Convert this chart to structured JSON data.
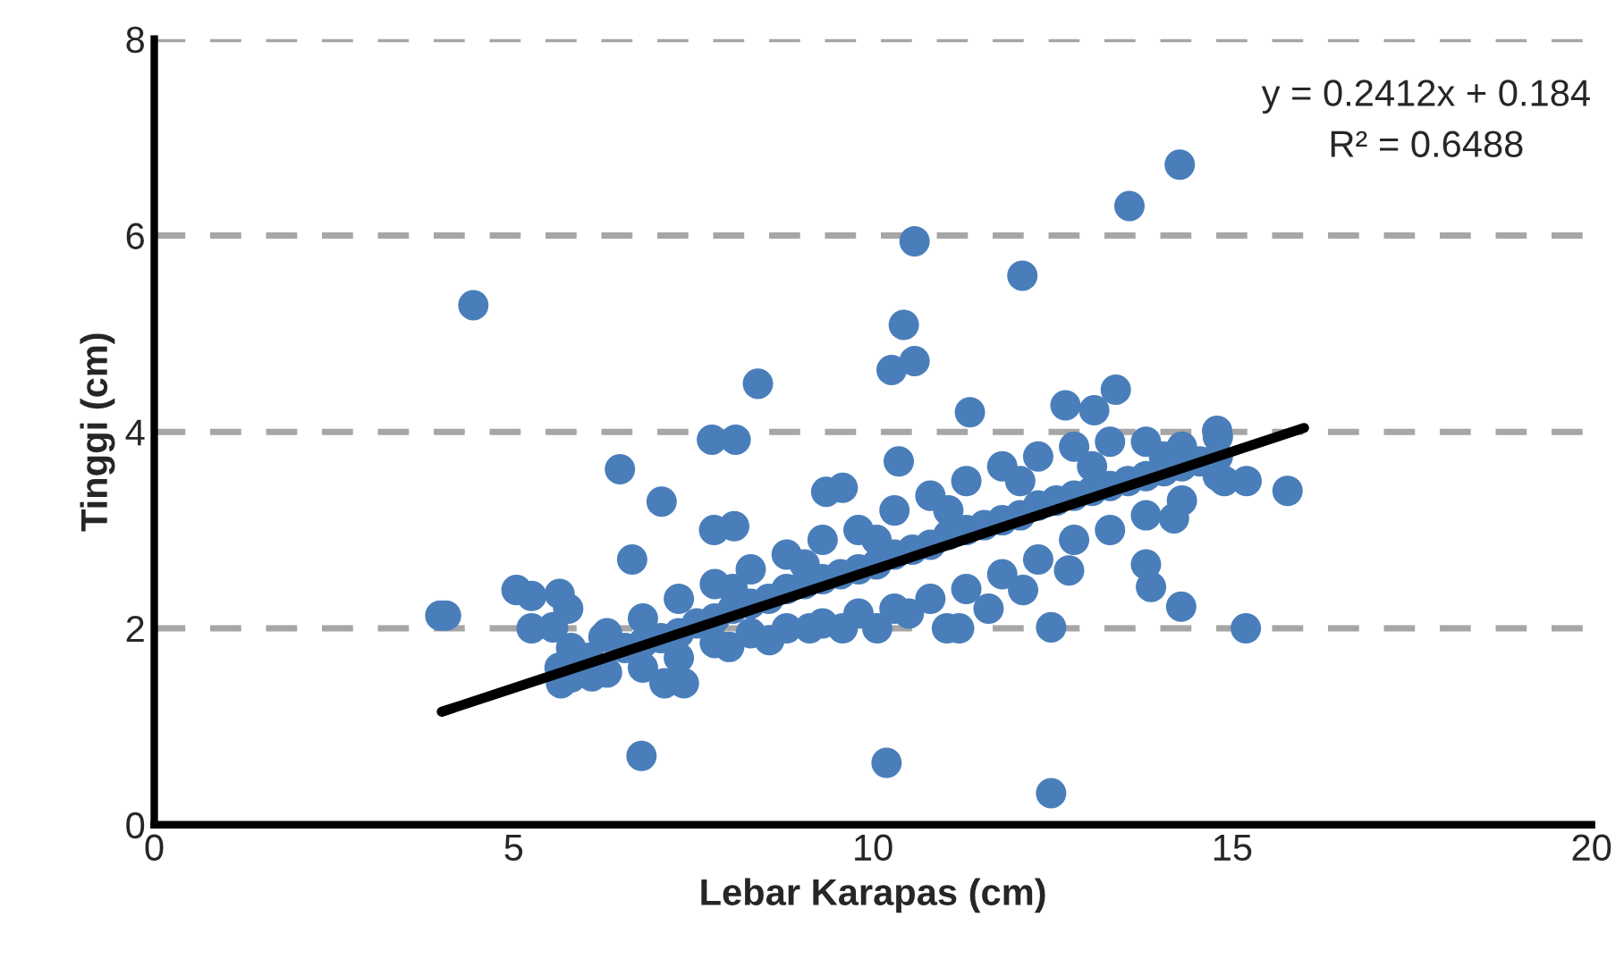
{
  "chart_data": {
    "type": "scatter",
    "xlabel": "Lebar Karapas (cm)",
    "ylabel": "Tinggi (cm)",
    "xlim": [
      0,
      20
    ],
    "ylim": [
      0,
      8
    ],
    "xticks": [
      0,
      5,
      10,
      15,
      20
    ],
    "yticks": [
      0,
      2,
      4,
      6,
      8
    ],
    "grid": "y",
    "annotations": [
      "y = 0.2412x + 0.184",
      "R² = 0.6488"
    ],
    "series": [
      {
        "marker": "circle",
        "color": "#4a7ebb",
        "x": [
          4.44,
          10.58,
          12.08,
          10.43,
          10.26,
          10.58,
          8.4,
          7.76,
          8.09,
          6.48,
          7.06,
          7.79,
          8.07,
          6.65,
          11.35,
          13.38,
          12.68,
          13.08,
          10.36,
          9.35,
          9.58,
          3.98,
          4.06,
          5.04,
          5.25,
          5.64,
          5.76,
          5.25,
          5.55,
          6.25,
          5.64,
          5.66,
          6.09,
          7.1,
          7.37,
          6.78,
          10.19,
          12.48,
          12.48,
          15.19,
          14.29,
          13.87,
          13.8,
          14.89,
          15.2,
          14.79,
          12.09,
          11.61,
          11.03,
          11.2,
          10.5,
          10.06,
          9.58,
          9.12,
          8.56,
          8.0,
          12.73,
          14.19,
          13.57,
          14.27,
          15.77,
          5.8,
          5.8,
          6.3,
          6.3,
          6.8,
          6.8,
          6.8,
          7.3,
          7.3,
          7.3,
          7.8,
          7.8,
          7.8,
          8.3,
          8.3,
          8.3,
          8.8,
          8.8,
          8.8,
          9.3,
          9.3,
          9.3,
          9.8,
          9.8,
          9.8,
          10.3,
          10.3,
          10.3,
          10.8,
          10.8,
          10.8,
          11.3,
          11.3,
          11.3,
          11.8,
          11.8,
          11.8,
          12.3,
          12.3,
          12.3,
          12.8,
          12.8,
          12.8,
          13.3,
          13.3,
          13.3,
          13.8,
          13.8,
          13.8,
          14.3,
          14.3,
          14.3,
          14.8,
          14.8,
          14.8,
          6.05,
          6.55,
          7.05,
          7.55,
          8.05,
          8.55,
          9.05,
          9.55,
          10.05,
          10.55,
          11.05,
          11.55,
          12.05,
          12.55,
          13.05,
          13.55,
          14.05,
          14.55,
          8.05,
          9.05,
          10.05,
          11.05,
          12.05,
          13.05,
          14.05
        ],
        "values": [
          5.29,
          5.94,
          5.59,
          5.09,
          4.63,
          4.72,
          4.49,
          3.92,
          3.92,
          3.62,
          3.29,
          3.0,
          3.04,
          2.7,
          4.2,
          4.43,
          4.27,
          4.22,
          3.7,
          3.39,
          3.43,
          2.13,
          2.13,
          2.39,
          2.33,
          2.35,
          2.2,
          2.0,
          2.01,
          1.91,
          1.6,
          1.44,
          1.51,
          1.44,
          1.44,
          0.7,
          0.63,
          0.32,
          2.01,
          2.0,
          2.22,
          2.42,
          2.65,
          3.5,
          3.5,
          4.01,
          2.39,
          2.2,
          2.0,
          2.0,
          2.15,
          2.0,
          2.0,
          2.0,
          1.88,
          1.81,
          2.59,
          3.12,
          6.3,
          6.72,
          3.4,
          1.5,
          1.8,
          1.55,
          1.95,
          1.6,
          1.85,
          2.1,
          1.7,
          1.95,
          2.3,
          1.85,
          2.1,
          2.45,
          1.95,
          2.25,
          2.6,
          2.0,
          2.4,
          2.75,
          2.05,
          2.5,
          2.9,
          2.15,
          2.6,
          3.0,
          2.2,
          2.75,
          3.2,
          2.3,
          2.85,
          3.35,
          2.4,
          3.0,
          3.5,
          2.55,
          3.1,
          3.65,
          2.7,
          3.25,
          3.75,
          2.9,
          3.35,
          3.85,
          3.0,
          3.45,
          3.9,
          3.15,
          3.55,
          3.9,
          3.3,
          3.65,
          3.85,
          3.55,
          3.75,
          3.95,
          1.7,
          1.8,
          1.9,
          2.05,
          2.2,
          2.3,
          2.45,
          2.55,
          2.65,
          2.8,
          2.95,
          3.05,
          3.15,
          3.3,
          3.4,
          3.5,
          3.6,
          3.7,
          2.4,
          2.65,
          2.9,
          3.2,
          3.5,
          3.65,
          3.75
        ]
      },
      {
        "type": "line",
        "color": "#000000",
        "x": [
          4.0,
          16.0
        ],
        "values": [
          1.15,
          4.04
        ]
      }
    ]
  }
}
